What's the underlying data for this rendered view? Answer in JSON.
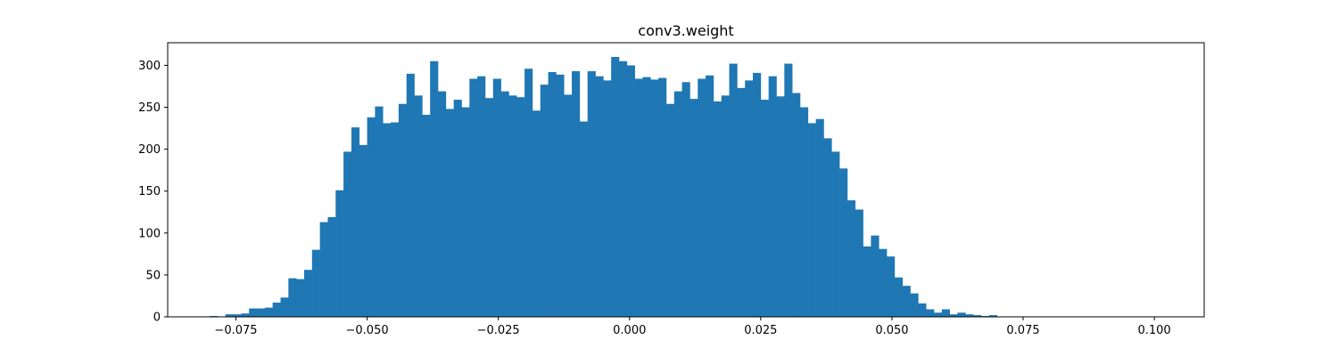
{
  "colors": {
    "bar": "#1f77b4",
    "axis": "#000000",
    "background": "#ffffff"
  },
  "chart_data": {
    "type": "bar",
    "title": "conv3.weight",
    "xlabel": "",
    "ylabel": "",
    "grid": false,
    "bin_start": -0.08,
    "bin_width": 0.0015,
    "xlim": [
      -0.088,
      0.1095
    ],
    "ylim": [
      0,
      327
    ],
    "xticks": [
      -0.075,
      -0.05,
      -0.025,
      0.0,
      0.025,
      0.05,
      0.075,
      0.1
    ],
    "xtick_labels": [
      "−0.075",
      "−0.050",
      "−0.025",
      "0.000",
      "0.025",
      "0.050",
      "0.075",
      "0.100"
    ],
    "yticks": [
      0,
      50,
      100,
      150,
      200,
      250,
      300
    ],
    "ytick_labels": [
      "0",
      "50",
      "100",
      "150",
      "200",
      "250",
      "300"
    ],
    "values": [
      1,
      0,
      3,
      3,
      4,
      10,
      10,
      11,
      17,
      23,
      46,
      45,
      56,
      80,
      113,
      119,
      151,
      197,
      226,
      205,
      238,
      251,
      231,
      232,
      254,
      290,
      264,
      241,
      305,
      269,
      248,
      259,
      250,
      284,
      287,
      261,
      284,
      269,
      264,
      262,
      296,
      246,
      277,
      292,
      289,
      265,
      293,
      233,
      293,
      287,
      282,
      310,
      305,
      300,
      284,
      286,
      283,
      285,
      254,
      269,
      280,
      260,
      284,
      288,
      257,
      264,
      302,
      273,
      282,
      291,
      259,
      287,
      263,
      302,
      267,
      250,
      231,
      236,
      213,
      197,
      177,
      139,
      128,
      84,
      97,
      81,
      72,
      47,
      37,
      28,
      16,
      9,
      5,
      9,
      3,
      5,
      3,
      2,
      1,
      2
    ]
  }
}
